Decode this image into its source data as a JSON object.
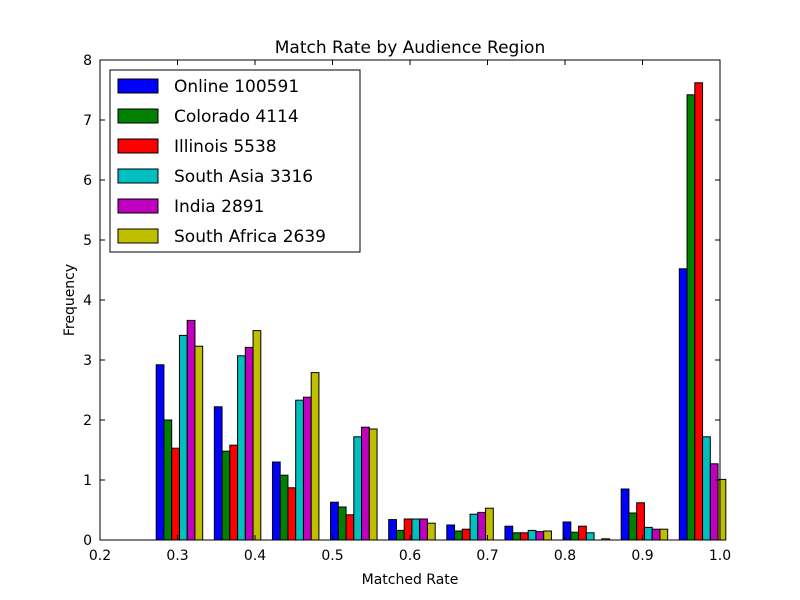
{
  "chart_data": {
    "type": "bar",
    "title": "Match Rate by Audience Region",
    "xlabel": "Matched Rate",
    "ylabel": "Frequency",
    "xlim": [
      0.2,
      1.0
    ],
    "ylim": [
      0,
      8
    ],
    "xticks": [
      "0.2",
      "0.3",
      "0.4",
      "0.5",
      "0.6",
      "0.7",
      "0.8",
      "0.9",
      "1.0"
    ],
    "yticks": [
      "0",
      "1",
      "2",
      "3",
      "4",
      "5",
      "6",
      "7",
      "8"
    ],
    "legend_position": "top-left",
    "grid": false,
    "bin_edges": [
      0.265,
      0.34,
      0.415,
      0.49,
      0.565,
      0.64,
      0.715,
      0.79,
      0.865,
      0.94,
      1.015
    ],
    "series": [
      {
        "name": "Online 100591",
        "color": "#0000ff",
        "values": [
          2.92,
          2.22,
          1.3,
          0.63,
          0.34,
          0.25,
          0.23,
          0.3,
          0.85,
          4.52
        ]
      },
      {
        "name": "Colorado 4114",
        "color": "#008000",
        "values": [
          2.0,
          1.48,
          1.08,
          0.55,
          0.16,
          0.15,
          0.12,
          0.13,
          0.45,
          7.42
        ]
      },
      {
        "name": "Illinois 5538",
        "color": "#ff0000",
        "values": [
          1.53,
          1.58,
          0.87,
          0.42,
          0.35,
          0.18,
          0.12,
          0.23,
          0.62,
          7.62
        ]
      },
      {
        "name": "South Asia 3316",
        "color": "#00bfbf",
        "values": [
          3.41,
          3.07,
          2.33,
          1.72,
          0.35,
          0.43,
          0.16,
          0.12,
          0.21,
          1.72
        ]
      },
      {
        "name": "India 2891",
        "color": "#bf00bf",
        "values": [
          3.66,
          3.21,
          2.38,
          1.88,
          0.35,
          0.46,
          0.14,
          0.0,
          0.18,
          1.27
        ]
      },
      {
        "name": "South Africa 2639",
        "color": "#bfbf00",
        "values": [
          3.23,
          3.49,
          2.79,
          1.85,
          0.28,
          0.53,
          0.15,
          0.02,
          0.18,
          1.01
        ]
      }
    ]
  }
}
